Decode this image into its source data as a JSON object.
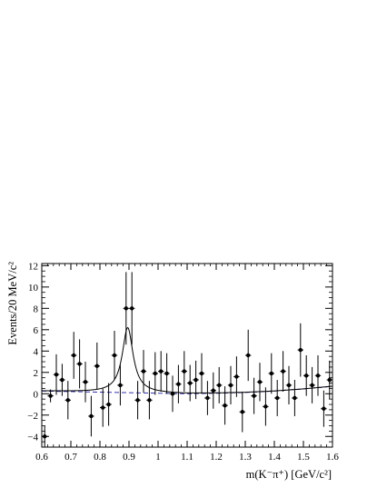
{
  "chart_data": {
    "type": "scatter",
    "xlabel": "m(K⁻π⁺)  [GeV/c²]",
    "ylabel": "Events/20 MeV/c²",
    "xlim": [
      0.6,
      1.6
    ],
    "ylim": [
      -5,
      12.2
    ],
    "x_ticks": [
      "0.6",
      "0.7",
      "0.8",
      "0.9",
      "1",
      "1.1",
      "1.2",
      "1.3",
      "1.4",
      "1.5",
      "1.6"
    ],
    "y_ticks": [
      "−4",
      "−2",
      "0",
      "2",
      "4",
      "6",
      "8",
      "10",
      "12"
    ],
    "grid": false,
    "series": [
      {
        "type": "points_with_errors",
        "x": [
          0.61,
          0.63,
          0.65,
          0.67,
          0.69,
          0.71,
          0.73,
          0.75,
          0.77,
          0.79,
          0.81,
          0.83,
          0.85,
          0.87,
          0.89,
          0.91,
          0.93,
          0.95,
          0.97,
          0.99,
          1.01,
          1.03,
          1.05,
          1.07,
          1.09,
          1.11,
          1.13,
          1.15,
          1.17,
          1.19,
          1.21,
          1.23,
          1.25,
          1.27,
          1.29,
          1.31,
          1.33,
          1.35,
          1.37,
          1.39,
          1.41,
          1.43,
          1.45,
          1.47,
          1.49,
          1.51,
          1.53,
          1.55,
          1.57,
          1.59
        ],
        "y": [
          -4.0,
          -0.2,
          1.8,
          1.3,
          -0.6,
          3.6,
          2.8,
          1.1,
          -2.1,
          2.6,
          -1.3,
          -1.0,
          3.6,
          0.8,
          8.0,
          8.0,
          -0.6,
          2.1,
          -0.6,
          1.9,
          2.1,
          1.9,
          0.0,
          0.9,
          2.1,
          1.0,
          1.3,
          1.9,
          -0.4,
          0.3,
          0.8,
          -1.1,
          0.8,
          1.6,
          -1.7,
          3.6,
          -0.2,
          1.1,
          -1.2,
          1.9,
          -0.4,
          2.1,
          0.8,
          -0.4,
          4.1,
          1.7,
          0.8,
          1.7,
          -1.4,
          1.3
        ],
        "yerr": [
          1.0,
          0.6,
          1.9,
          1.5,
          1.8,
          2.2,
          2.3,
          1.9,
          1.9,
          2.2,
          1.8,
          2.0,
          2.3,
          1.9,
          3.4,
          3.4,
          1.8,
          2.0,
          1.8,
          2.0,
          1.9,
          1.9,
          1.7,
          1.8,
          1.9,
          1.7,
          1.8,
          1.9,
          1.6,
          1.7,
          1.7,
          1.8,
          1.8,
          1.9,
          1.9,
          2.4,
          1.7,
          1.8,
          1.8,
          1.9,
          1.7,
          1.9,
          1.8,
          1.7,
          2.5,
          1.9,
          1.7,
          1.9,
          1.7,
          1.8
        ]
      },
      {
        "type": "fit_curve",
        "color": "#000000",
        "peak_mass": 0.8955,
        "width": 0.045,
        "peak_height": 6.1
      },
      {
        "type": "background_curve",
        "color": "#3333aa",
        "dashed": true,
        "x": [
          0.6,
          0.7,
          0.8,
          0.9,
          1.0,
          1.1,
          1.2,
          1.3,
          1.4,
          1.5,
          1.6
        ],
        "y": [
          0.25,
          0.2,
          0.15,
          0.1,
          0.05,
          0.0,
          0.05,
          0.12,
          0.25,
          0.45,
          0.7
        ]
      }
    ]
  }
}
